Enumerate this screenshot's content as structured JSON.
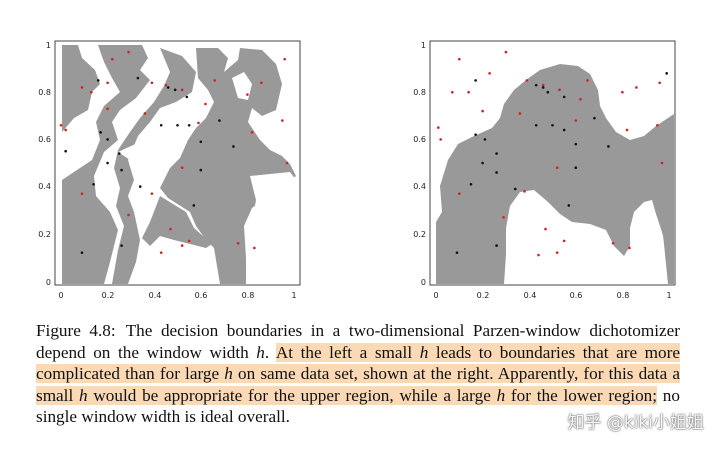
{
  "figure": {
    "panels": [
      {
        "id": "left",
        "x_ticks": [
          "0",
          "0.2",
          "0.4",
          "0.6",
          "0.8",
          "1"
        ],
        "y_ticks": [
          "0",
          "0.2",
          "0.4",
          "0.6",
          "0.8",
          "1"
        ],
        "region_color": "#999999",
        "red_points": [
          [
            0.22,
            0.94
          ],
          [
            0.29,
            0.97
          ],
          [
            0.09,
            0.82
          ],
          [
            0.13,
            0.8
          ],
          [
            0.2,
            0.84
          ],
          [
            0.39,
            0.84
          ],
          [
            0.45,
            0.83
          ],
          [
            0.52,
            0.81
          ],
          [
            0.62,
            0.75
          ],
          [
            0.66,
            0.85
          ],
          [
            0.8,
            0.79
          ],
          [
            0.86,
            0.84
          ],
          [
            0.96,
            0.94
          ],
          [
            0.0,
            0.66
          ],
          [
            0.02,
            0.64
          ],
          [
            0.2,
            0.73
          ],
          [
            0.36,
            0.71
          ],
          [
            0.59,
            0.67
          ],
          [
            0.82,
            0.63
          ],
          [
            0.97,
            0.5
          ],
          [
            0.52,
            0.48
          ],
          [
            0.39,
            0.37
          ],
          [
            0.09,
            0.37
          ],
          [
            0.29,
            0.28
          ],
          [
            0.47,
            0.22
          ],
          [
            0.52,
            0.15
          ],
          [
            0.55,
            0.17
          ],
          [
            0.76,
            0.16
          ],
          [
            0.83,
            0.14
          ],
          [
            0.43,
            0.12
          ],
          [
            0.95,
            0.68
          ]
        ],
        "black_points": [
          [
            0.16,
            0.85
          ],
          [
            0.33,
            0.86
          ],
          [
            0.46,
            0.82
          ],
          [
            0.49,
            0.81
          ],
          [
            0.54,
            0.78
          ],
          [
            0.43,
            0.66
          ],
          [
            0.5,
            0.66
          ],
          [
            0.55,
            0.66
          ],
          [
            0.68,
            0.68
          ],
          [
            0.2,
            0.6
          ],
          [
            0.25,
            0.54
          ],
          [
            0.2,
            0.5
          ],
          [
            0.26,
            0.47
          ],
          [
            0.14,
            0.41
          ],
          [
            0.34,
            0.4
          ],
          [
            0.6,
            0.47
          ],
          [
            0.57,
            0.32
          ],
          [
            0.09,
            0.12
          ],
          [
            0.26,
            0.15
          ],
          [
            0.17,
            0.63
          ],
          [
            0.74,
            0.57
          ],
          [
            0.6,
            0.59
          ],
          [
            0.02,
            0.55
          ]
        ]
      },
      {
        "id": "right",
        "x_ticks": [
          "0",
          "0.2",
          "0.4",
          "0.6",
          "0.8",
          "1"
        ],
        "y_ticks": [
          "0",
          "0.2",
          "0.4",
          "0.6",
          "0.8",
          "1"
        ],
        "region_color": "#999999",
        "red_points": [
          [
            0.1,
            0.94
          ],
          [
            0.3,
            0.97
          ],
          [
            0.07,
            0.8
          ],
          [
            0.14,
            0.8
          ],
          [
            0.23,
            0.88
          ],
          [
            0.39,
            0.85
          ],
          [
            0.46,
            0.83
          ],
          [
            0.53,
            0.81
          ],
          [
            0.62,
            0.77
          ],
          [
            0.65,
            0.85
          ],
          [
            0.8,
            0.8
          ],
          [
            0.86,
            0.82
          ],
          [
            0.96,
            0.84
          ],
          [
            0.01,
            0.65
          ],
          [
            0.02,
            0.6
          ],
          [
            0.2,
            0.72
          ],
          [
            0.36,
            0.71
          ],
          [
            0.6,
            0.68
          ],
          [
            0.82,
            0.64
          ],
          [
            0.97,
            0.5
          ],
          [
            0.52,
            0.48
          ],
          [
            0.38,
            0.38
          ],
          [
            0.1,
            0.37
          ],
          [
            0.29,
            0.27
          ],
          [
            0.47,
            0.22
          ],
          [
            0.52,
            0.12
          ],
          [
            0.55,
            0.17
          ],
          [
            0.76,
            0.16
          ],
          [
            0.83,
            0.14
          ],
          [
            0.44,
            0.11
          ],
          [
            0.95,
            0.66
          ]
        ],
        "black_points": [
          [
            0.17,
            0.85
          ],
          [
            0.43,
            0.83
          ],
          [
            0.46,
            0.82
          ],
          [
            0.48,
            0.8
          ],
          [
            0.55,
            0.78
          ],
          [
            0.43,
            0.66
          ],
          [
            0.5,
            0.66
          ],
          [
            0.55,
            0.64
          ],
          [
            0.68,
            0.69
          ],
          [
            0.21,
            0.6
          ],
          [
            0.26,
            0.54
          ],
          [
            0.2,
            0.5
          ],
          [
            0.26,
            0.46
          ],
          [
            0.15,
            0.41
          ],
          [
            0.34,
            0.39
          ],
          [
            0.6,
            0.48
          ],
          [
            0.57,
            0.32
          ],
          [
            0.09,
            0.12
          ],
          [
            0.26,
            0.15
          ],
          [
            0.17,
            0.62
          ],
          [
            0.74,
            0.57
          ],
          [
            0.6,
            0.58
          ],
          [
            0.99,
            0.88
          ]
        ]
      }
    ]
  },
  "caption": {
    "label": "Figure 4.8:",
    "sentence1_a": "The decision boundaries in a two-dimensional Parzen-window dichotomizer depend on the window width ",
    "sentence1_var": "h",
    "sentence1_end": ".",
    "hl1_a": "At the left a small ",
    "hl1_var1": "h",
    "hl1_b": " leads to boundaries that are more complicated than for large ",
    "hl1_var2": "h",
    "hl1_c": " on same data set, shown at the right. Apparently, for this data a small ",
    "hl1_var3": "h",
    "hl1_d": " would be appropriate for the upper region, while a large ",
    "hl1_var4": "h",
    "hl1_e": " for the lower region;",
    "tail": " no single window width is ideal overall."
  },
  "watermark": "知乎 @kiki小姐姐"
}
